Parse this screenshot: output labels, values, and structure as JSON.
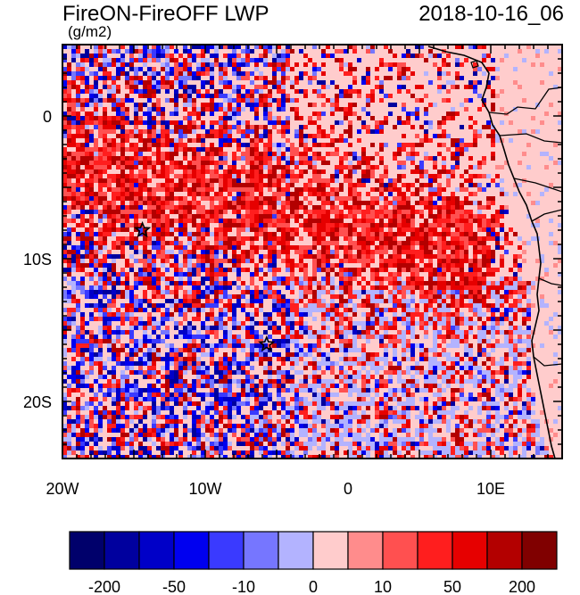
{
  "title": "FireON-FireOFF LWP",
  "units": "(g/m2)",
  "datetime": "2018-10-16_06",
  "chart_data": {
    "type": "heatmap",
    "xlim": [
      -20,
      15
    ],
    "ylim": [
      -24,
      5
    ],
    "x_ticks": [
      {
        "value": -20,
        "label": "20W"
      },
      {
        "value": -10,
        "label": "10W"
      },
      {
        "value": 0,
        "label": "0"
      },
      {
        "value": 10,
        "label": "10E"
      }
    ],
    "y_ticks": [
      {
        "value": 0,
        "label": "0"
      },
      {
        "value": -10,
        "label": "10S"
      },
      {
        "value": -20,
        "label": "20S"
      }
    ],
    "markers": [
      {
        "lon": -14.4,
        "lat": -8.0,
        "symbol": "star"
      },
      {
        "lon": -5.7,
        "lat": -16.0,
        "symbol": "star"
      }
    ],
    "colorbar": {
      "colors": [
        "#00006b",
        "#00009e",
        "#0000c8",
        "#0000f0",
        "#3a3aff",
        "#7676ff",
        "#b3b3ff",
        "#ffcccc",
        "#ff8c8c",
        "#ff5050",
        "#ff1e1e",
        "#e60000",
        "#b30000",
        "#800000"
      ],
      "labels": [
        {
          "boundary": 1,
          "text": "-200"
        },
        {
          "boundary": 3,
          "text": "-50"
        },
        {
          "boundary": 5,
          "text": "-10"
        },
        {
          "boundary": 7,
          "text": "0"
        },
        {
          "boundary": 9,
          "text": "10"
        },
        {
          "boundary": 11,
          "text": "50"
        },
        {
          "boundary": 13,
          "text": "200"
        }
      ]
    }
  }
}
